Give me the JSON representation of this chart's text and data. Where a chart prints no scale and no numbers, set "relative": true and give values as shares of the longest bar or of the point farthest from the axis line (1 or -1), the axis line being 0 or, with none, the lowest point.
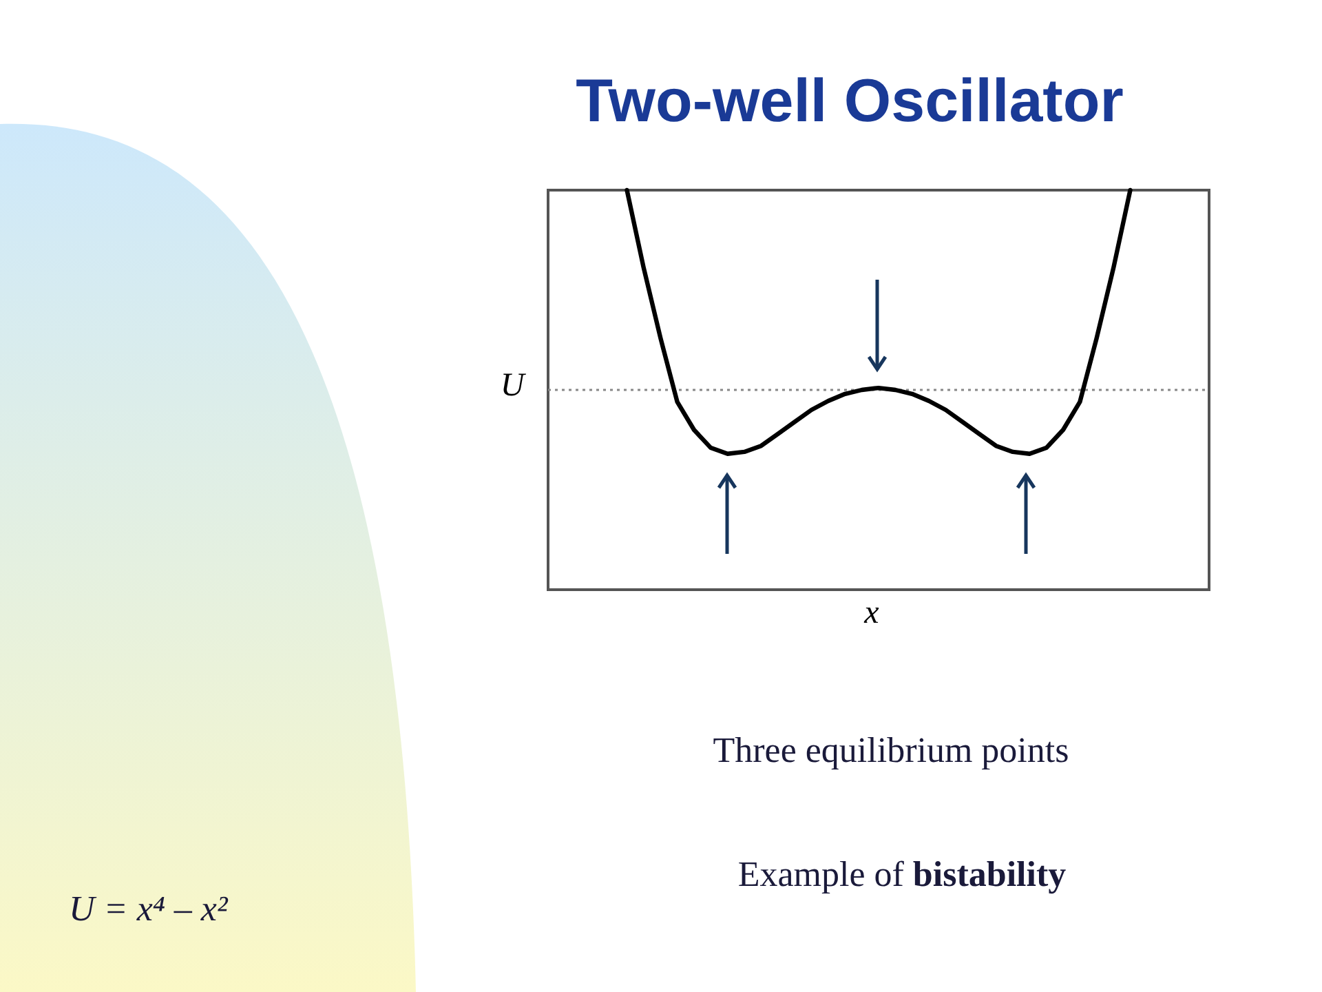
{
  "chart_data": {
    "type": "line",
    "title": "Two-well Oscillator",
    "xlabel": "x",
    "ylabel": "U",
    "relative": true,
    "categories": [
      null,
      null,
      null,
      null,
      null,
      null,
      null,
      null,
      null,
      null,
      null,
      null,
      null,
      null,
      null,
      null,
      null,
      null,
      null,
      null,
      null,
      null,
      null,
      null,
      null,
      null,
      null,
      null,
      null,
      null,
      null
    ],
    "series": [
      {
        "color": "#000000",
        "values": [
          1.0,
          0.61,
          0.26,
          -0.06,
          -0.2,
          -0.29,
          -0.32,
          -0.31,
          -0.28,
          -0.22,
          -0.16,
          -0.1,
          -0.055,
          -0.02,
          0.0,
          0.01,
          0.0,
          -0.02,
          -0.055,
          -0.1,
          -0.16,
          -0.22,
          -0.28,
          -0.31,
          -0.32,
          -0.29,
          -0.2,
          -0.06,
          0.26,
          0.61,
          1.0
        ]
      }
    ],
    "ref_lines": [
      {
        "axis": "y",
        "value": 0,
        "color": "#888888",
        "line_style": "dotted"
      }
    ],
    "annotations": [
      "Three equilibrium points",
      "Example of bistability",
      "U = x⁴ – x²"
    ]
  }
}
